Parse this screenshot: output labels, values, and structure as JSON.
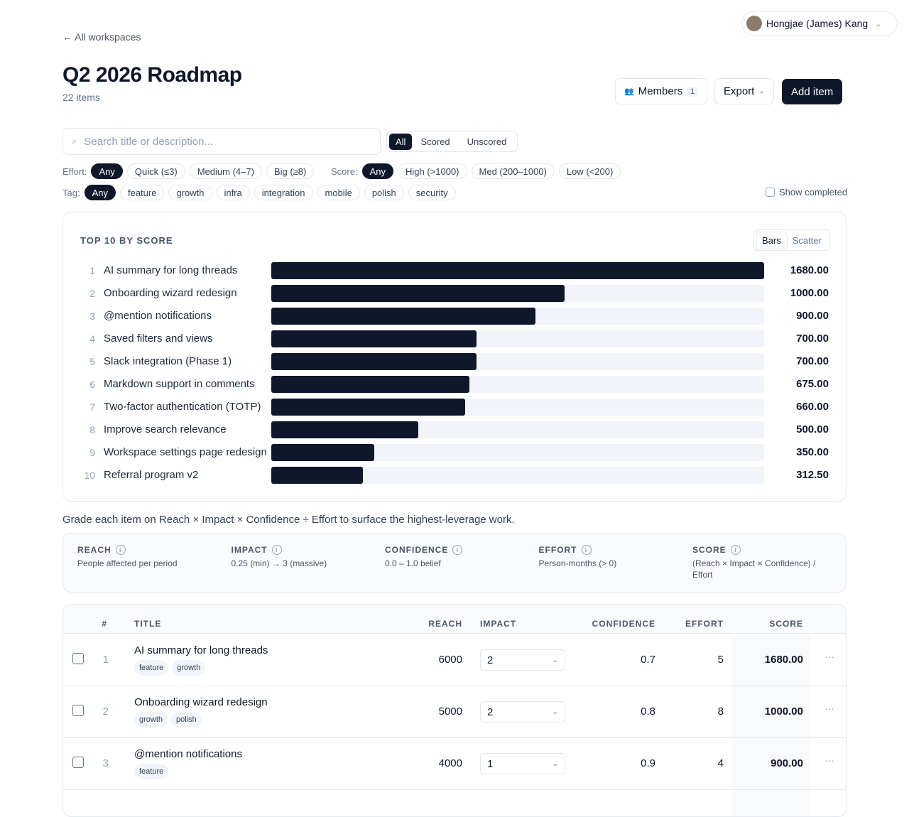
{
  "user": {
    "name": "Hongjae (James) Kang"
  },
  "header": {
    "back": "All workspaces",
    "title": "Q2 2026 Roadmap",
    "count": "22 items",
    "members": "Members",
    "members_count": 1,
    "export": "Export",
    "add": "Add item"
  },
  "search": {
    "placeholder": "Search title or description..."
  },
  "status_tabs": {
    "options": [
      "All",
      "Scored",
      "Unscored"
    ],
    "active": "All"
  },
  "filters": [
    {
      "label": "Effort:",
      "options": [
        "Any",
        "Quick (≤3)",
        "Medium (4–7)",
        "Big (≥8)"
      ],
      "active": "Any"
    },
    {
      "label": "Score:",
      "options": [
        "Any",
        "High (>1000)",
        "Med (200–1000)",
        "Low (<200)"
      ],
      "active": "Any"
    },
    {
      "label": "Tag:",
      "options": [
        "Any",
        "feature",
        "growth",
        "infra",
        "integration",
        "mobile",
        "polish",
        "security"
      ],
      "active": "Any"
    }
  ],
  "show_completed": "Show completed",
  "chart": {
    "type": "bar",
    "title": "TOP 10 BY SCORE",
    "views": [
      "Bars",
      "Scatter"
    ],
    "active_view": "Bars",
    "color": "#0f172a",
    "ranks": [
      1,
      2,
      3,
      4,
      5,
      6,
      7,
      8,
      9,
      10
    ],
    "categories": [
      "AI summary for long threads",
      "Onboarding wizard redesign",
      "@mention notifications",
      "Saved filters and views",
      "Slack integration (Phase 1)",
      "Markdown support in comments",
      "Two-factor authentication (TOTP)",
      "Improve search relevance",
      "Workspace settings page redesign",
      "Referral program v2"
    ],
    "values": [
      1680,
      1000,
      900,
      700,
      700,
      675,
      660,
      500,
      350,
      312.5
    ],
    "value_labels": [
      "1680.00",
      "1000.00",
      "900.00",
      "700.00",
      "700.00",
      "675.00",
      "660.00",
      "500.00",
      "350.00",
      "312.50"
    ]
  },
  "note": "Grade each item on Reach × Impact × Confidence ÷ Effort to surface the highest-leverage work.",
  "definitions": [
    {
      "name": "REACH",
      "desc": "People affected per period"
    },
    {
      "name": "IMPACT",
      "desc": "0.25 (min) → 3 (massive)"
    },
    {
      "name": "CONFIDENCE",
      "desc": "0.0 – 1.0 belief"
    },
    {
      "name": "EFFORT",
      "desc": "Person-months (> 0)"
    },
    {
      "name": "SCORE",
      "desc": "(Reach × Impact × Confidence) / Effort"
    }
  ],
  "table": {
    "columns": [
      "#",
      "TITLE",
      "REACH",
      "IMPACT",
      "CONFIDENCE",
      "EFFORT",
      "SCORE"
    ],
    "rows": [
      {
        "rank": 1,
        "title": "AI summary for long threads",
        "tags": [
          "feature",
          "growth"
        ],
        "reach": 6000,
        "impact": 2,
        "confidence": 0.7,
        "effort": 5,
        "score": "1680.00"
      },
      {
        "rank": 2,
        "title": "Onboarding wizard redesign",
        "tags": [
          "growth",
          "polish"
        ],
        "reach": 5000,
        "impact": 2,
        "confidence": 0.8,
        "effort": 8,
        "score": "1000.00"
      },
      {
        "rank": 3,
        "title": "@mention notifications",
        "tags": [
          "feature"
        ],
        "reach": 4000,
        "impact": 1,
        "confidence": 0.9,
        "effort": 4,
        "score": "900.00"
      }
    ]
  }
}
